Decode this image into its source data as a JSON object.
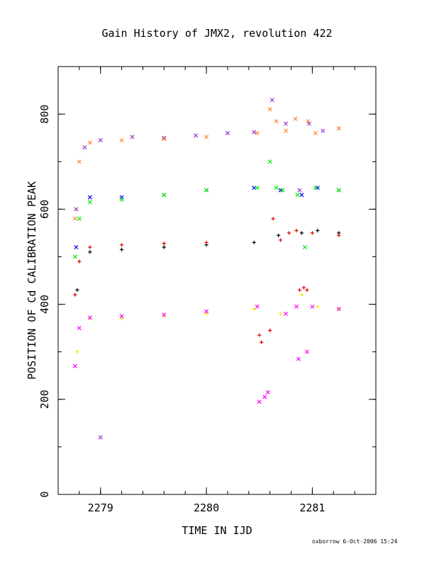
{
  "chart_data": {
    "type": "scatter",
    "title": "Gain History of JMX2, revolution 422",
    "xlabel": "TIME IN IJD",
    "ylabel": "POSITION OF Cd CALIBRATION PEAK",
    "xlim": [
      2278.6,
      2281.6
    ],
    "ylim": [
      0,
      900
    ],
    "xticks": [
      "2279",
      "2280",
      "2281"
    ],
    "yticks": [
      "0",
      "200",
      "400",
      "600",
      "800"
    ],
    "grid": false,
    "legend": "none",
    "series": [
      {
        "color": "#9933cc",
        "marker": "x",
        "x": [
          2278.77,
          2278.85,
          2279.0,
          2279.3,
          2279.6,
          2279.9,
          2280.2,
          2280.45,
          2280.62,
          2280.75,
          2280.88,
          2280.97,
          2281.1,
          2281.25
        ],
        "y": [
          600,
          730,
          745,
          752,
          750,
          755,
          760,
          762,
          830,
          780,
          640,
          780,
          765,
          770
        ]
      },
      {
        "color": "#ff8833",
        "marker": "x",
        "x": [
          2278.76,
          2278.8,
          2278.9,
          2279.2,
          2279.6,
          2280.0,
          2280.48,
          2280.6,
          2280.66,
          2280.75,
          2280.84,
          2280.96,
          2281.03,
          2281.25
        ],
        "y": [
          580,
          700,
          740,
          745,
          748,
          752,
          760,
          810,
          785,
          765,
          790,
          785,
          760,
          770
        ]
      },
      {
        "color": "#0000ff",
        "marker": "x",
        "x": [
          2278.77,
          2278.9,
          2279.2,
          2279.6,
          2280.0,
          2280.45,
          2280.7,
          2280.9,
          2281.05,
          2281.25
        ],
        "y": [
          520,
          625,
          625,
          630,
          640,
          645,
          640,
          630,
          645,
          640
        ]
      },
      {
        "color": "#00ee00",
        "marker": "x",
        "x": [
          2278.76,
          2278.8,
          2278.9,
          2279.2,
          2279.6,
          2280.0,
          2280.48,
          2280.6,
          2280.66,
          2280.72,
          2280.86,
          2280.93,
          2281.03,
          2281.25
        ],
        "y": [
          500,
          580,
          615,
          620,
          630,
          640,
          645,
          700,
          645,
          640,
          630,
          520,
          645,
          640
        ]
      },
      {
        "color": "#000000",
        "marker": "+",
        "x": [
          2278.78,
          2278.9,
          2279.2,
          2279.6,
          2280.0,
          2280.45,
          2280.68,
          2280.9,
          2281.05,
          2281.25
        ],
        "y": [
          430,
          510,
          515,
          520,
          525,
          530,
          545,
          550,
          555,
          550
        ]
      },
      {
        "color": "#dd0000",
        "marker": "+",
        "x": [
          2278.76,
          2278.8,
          2278.9,
          2279.2,
          2279.6,
          2280.0,
          2280.5,
          2280.52,
          2280.6,
          2280.63,
          2280.7,
          2280.78,
          2280.85,
          2280.88,
          2280.92,
          2280.95,
          2281.0,
          2281.25
        ],
        "y": [
          420,
          490,
          520,
          525,
          528,
          530,
          335,
          320,
          345,
          580,
          535,
          550,
          555,
          430,
          435,
          430,
          550,
          545
        ]
      },
      {
        "color": "#eeee00",
        "marker": "+",
        "x": [
          2278.78,
          2278.9,
          2279.2,
          2279.6,
          2280.0,
          2280.45,
          2280.7,
          2280.9,
          2281.05,
          2281.25
        ],
        "y": [
          300,
          370,
          370,
          375,
          380,
          390,
          380,
          420,
          395,
          390
        ]
      },
      {
        "color": "#ff00ff",
        "marker": "x",
        "x": [
          2278.76,
          2278.8,
          2278.9,
          2279.2,
          2279.6,
          2280.0,
          2280.48,
          2280.5,
          2280.55,
          2280.58,
          2280.75,
          2280.85,
          2280.87,
          2280.95,
          2281.0,
          2281.25
        ],
        "y": [
          270,
          350,
          372,
          375,
          378,
          385,
          395,
          195,
          205,
          215,
          380,
          395,
          285,
          300,
          395,
          390
        ]
      },
      {
        "color": "#9933cc",
        "marker": "x",
        "x": [
          2279.0
        ],
        "y": [
          120
        ]
      }
    ]
  },
  "footer": {
    "credit": "oxborrow  6-Oct-2006 15:24"
  }
}
